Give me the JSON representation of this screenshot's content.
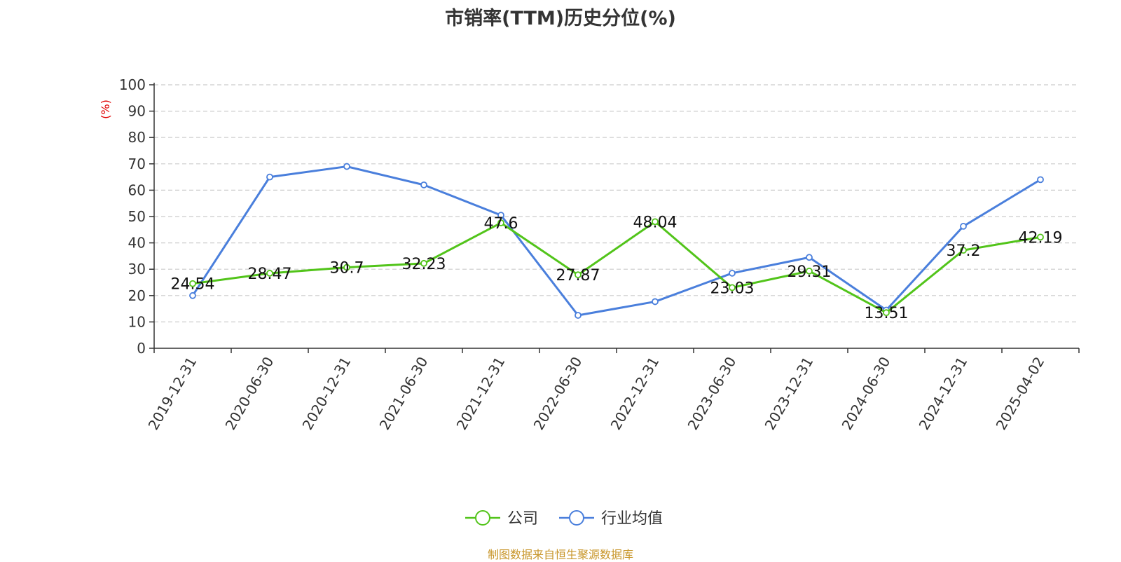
{
  "chart_data": {
    "type": "line",
    "title": "市销率(TTM)历史分位(%)",
    "ylabel": "(%)",
    "ylim": [
      0,
      100
    ],
    "yticks": [
      0,
      10,
      20,
      30,
      40,
      50,
      60,
      70,
      80,
      90,
      100
    ],
    "grid": "horizontal-dashed",
    "legend_position": "bottom-center",
    "categories": [
      "2019-12-31",
      "2020-06-30",
      "2020-12-31",
      "2021-06-30",
      "2021-12-31",
      "2022-06-30",
      "2022-12-31",
      "2023-06-30",
      "2023-12-31",
      "2024-06-30",
      "2024-12-31",
      "2025-04-02"
    ],
    "series": [
      {
        "name": "公司",
        "color": "#52c41a",
        "values": [
          24.54,
          28.47,
          30.7,
          32.23,
          47.6,
          27.87,
          48.04,
          23.03,
          29.31,
          13.51,
          37.2,
          42.19
        ],
        "labels_shown": true
      },
      {
        "name": "行业均值",
        "color": "#4a7fdc",
        "values": [
          20.0,
          65.0,
          69.0,
          62.0,
          50.5,
          12.5,
          17.7,
          28.5,
          34.5,
          14.5,
          46.3,
          64.0
        ],
        "labels_shown": false
      }
    ],
    "source": "制图数据来自恒生聚源数据库"
  }
}
